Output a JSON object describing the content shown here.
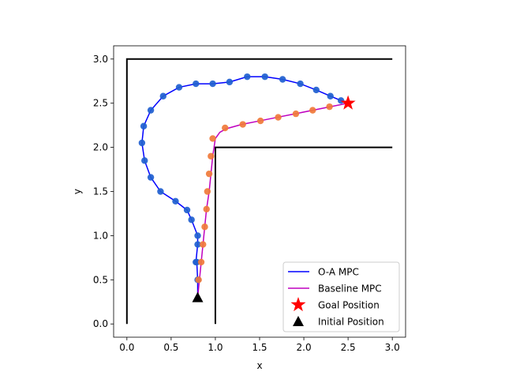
{
  "chart_data": {
    "type": "line",
    "title": "",
    "xlabel": "x",
    "ylabel": "y",
    "xlim": [
      -0.15,
      3.15
    ],
    "ylim": [
      -0.15,
      3.15
    ],
    "xticks": [
      "0.0",
      "0.5",
      "1.0",
      "1.5",
      "2.0",
      "2.5",
      "3.0"
    ],
    "yticks": [
      "0.0",
      "0.5",
      "1.0",
      "1.5",
      "2.0",
      "2.5",
      "3.0"
    ],
    "xtick_values": [
      0,
      0.5,
      1.0,
      1.5,
      2.0,
      2.5,
      3.0
    ],
    "ytick_values": [
      0,
      0.5,
      1.0,
      1.5,
      2.0,
      2.5,
      3.0
    ],
    "grid": false,
    "legend_position": "lower-right",
    "walls": [
      {
        "name": "outer-wall",
        "points": [
          [
            0,
            0
          ],
          [
            0,
            3.0
          ],
          [
            3.0,
            3.0
          ]
        ]
      },
      {
        "name": "inner-wall",
        "points": [
          [
            1.0,
            0
          ],
          [
            1.0,
            2.0
          ],
          [
            3.0,
            2.0
          ]
        ]
      }
    ],
    "series": [
      {
        "name": "O-A MPC",
        "kind": "line",
        "color": "#0000ff",
        "x": [
          0.8,
          0.8,
          0.79,
          0.78,
          0.8,
          0.8,
          0.73,
          0.68,
          0.55,
          0.38,
          0.27,
          0.2,
          0.17,
          0.19,
          0.27,
          0.41,
          0.59,
          0.78,
          0.97,
          1.16,
          1.36,
          1.56,
          1.76,
          1.96,
          2.14,
          2.3,
          2.42,
          2.5
        ],
        "y": [
          0.3,
          0.5,
          0.7,
          0.7,
          0.9,
          1.0,
          1.18,
          1.29,
          1.39,
          1.5,
          1.66,
          1.85,
          2.05,
          2.24,
          2.42,
          2.58,
          2.68,
          2.72,
          2.72,
          2.74,
          2.8,
          2.8,
          2.77,
          2.72,
          2.65,
          2.58,
          2.53,
          2.5
        ]
      },
      {
        "name": "O-A MPC waypoints",
        "kind": "scatter",
        "color": "#1f5fd0",
        "x": [
          0.8,
          0.79,
          0.78,
          0.8,
          0.8,
          0.73,
          0.68,
          0.55,
          0.38,
          0.27,
          0.2,
          0.17,
          0.19,
          0.27,
          0.41,
          0.59,
          0.78,
          0.97,
          1.16,
          1.36,
          1.56,
          1.76,
          1.96,
          2.14,
          2.3,
          2.42
        ],
        "y": [
          0.5,
          0.7,
          0.7,
          0.9,
          1.0,
          1.18,
          1.29,
          1.39,
          1.5,
          1.66,
          1.85,
          2.05,
          2.24,
          2.42,
          2.58,
          2.68,
          2.72,
          2.72,
          2.74,
          2.8,
          2.8,
          2.77,
          2.72,
          2.65,
          2.58,
          2.53
        ]
      },
      {
        "name": "Baseline MPC",
        "kind": "line",
        "color": "#bf00bf",
        "x": [
          0.8,
          0.82,
          0.84,
          0.86,
          0.88,
          0.9,
          0.93,
          0.95,
          0.97,
          1.0,
          1.05,
          1.12,
          1.3,
          1.5,
          1.7,
          1.9,
          2.1,
          2.3,
          2.5
        ],
        "y": [
          0.3,
          0.5,
          0.7,
          0.9,
          1.1,
          1.3,
          1.5,
          1.7,
          1.9,
          2.1,
          2.17,
          2.21,
          2.26,
          2.3,
          2.34,
          2.38,
          2.42,
          2.46,
          2.5
        ]
      },
      {
        "name": "Baseline MPC waypoints",
        "kind": "scatter",
        "color": "#f07a3a",
        "x": [
          0.81,
          0.84,
          0.86,
          0.88,
          0.9,
          0.91,
          0.93,
          0.95,
          0.97,
          1.11,
          1.31,
          1.51,
          1.71,
          1.91,
          2.1,
          2.29
        ],
        "y": [
          0.5,
          0.7,
          0.9,
          1.1,
          1.3,
          1.5,
          1.7,
          1.9,
          2.1,
          2.22,
          2.26,
          2.3,
          2.34,
          2.38,
          2.42,
          2.46
        ]
      },
      {
        "name": "Goal Position",
        "kind": "marker",
        "marker": "star",
        "color": "#ff0000",
        "x": [
          2.5
        ],
        "y": [
          2.5
        ]
      },
      {
        "name": "Initial Position",
        "kind": "marker",
        "marker": "triangle",
        "color": "#000000",
        "x": [
          0.8
        ],
        "y": [
          0.3
        ]
      }
    ],
    "legend": [
      {
        "label": "O-A MPC",
        "symbol": "line",
        "color": "#0000ff"
      },
      {
        "label": "Baseline MPC",
        "symbol": "line",
        "color": "#bf00bf"
      },
      {
        "label": "Goal Position",
        "symbol": "star",
        "color": "#ff0000"
      },
      {
        "label": "Initial Position",
        "symbol": "triangle",
        "color": "#000000"
      }
    ]
  }
}
